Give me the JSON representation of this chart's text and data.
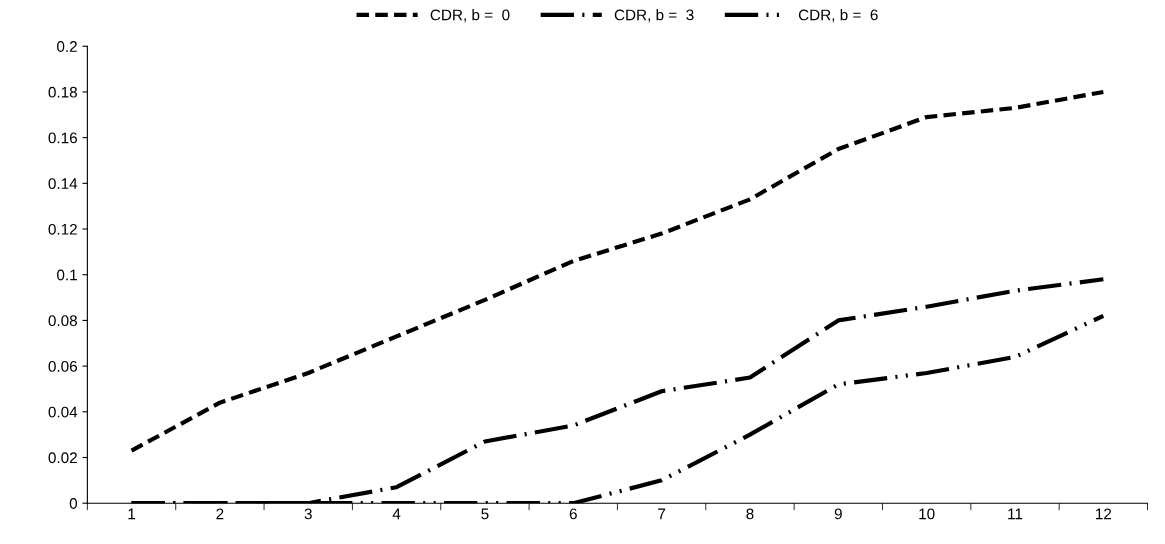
{
  "chart_data": {
    "type": "line",
    "categories": [
      "1",
      "2",
      "3",
      "4",
      "5",
      "6",
      "7",
      "8",
      "9",
      "10",
      "11",
      "12"
    ],
    "series": [
      {
        "name": "CDR, b =  0",
        "color": "#000000",
        "line_style": "dashed",
        "values": [
          0.023,
          0.044,
          0.057,
          0.073,
          0.089,
          0.106,
          0.118,
          0.133,
          0.155,
          0.169,
          0.173,
          0.18
        ]
      },
      {
        "name": "CDR, b =  3",
        "color": "#000000",
        "line_style": "dashdot",
        "values": [
          0,
          0,
          0,
          0.007,
          0.027,
          0.034,
          0.049,
          0.055,
          0.08,
          0.086,
          0.093,
          0.098
        ]
      },
      {
        "name": "CDR, b =  6",
        "color": "#000000",
        "line_style": "dashdotdot",
        "values": [
          0,
          0,
          0,
          0,
          0,
          0,
          0.01,
          0.03,
          0.052,
          0.057,
          0.064,
          0.082
        ]
      }
    ],
    "ylim": [
      0,
      0.2
    ],
    "yticks": [
      0,
      0.02,
      0.04,
      0.06,
      0.08,
      0.1,
      0.12,
      0.14,
      0.16,
      0.18,
      0.2
    ],
    "grid": false,
    "legend": "top",
    "marker": "none"
  }
}
